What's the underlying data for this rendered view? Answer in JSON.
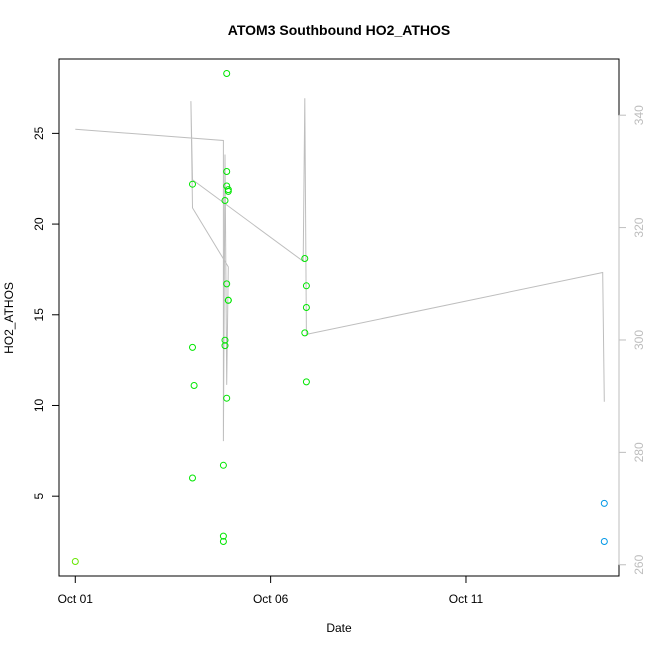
{
  "chart_data": {
    "type": "scatter",
    "title": "ATOM3 Southbound HO2_ATHOS",
    "xlabel": "Date",
    "ylabel": "HO2_ATHOS",
    "y2label": "",
    "x_ticks": [
      {
        "label": "Oct 01",
        "value": "2004-10-01T00:00"
      },
      {
        "label": "Oct 06",
        "value": "2004-10-06T00:00"
      },
      {
        "label": "Oct 11",
        "value": "2004-10-11T00:00"
      }
    ],
    "y_ticks": [
      5,
      10,
      15,
      20,
      25
    ],
    "y2_ticks": [
      260,
      280,
      300,
      320,
      340
    ],
    "ylim": [
      0.6,
      29.1
    ],
    "y2lim": [
      258,
      350
    ],
    "xlim": [
      "2004-09-30T14:00",
      "2004-10-14T22:00"
    ],
    "colors": {
      "green": "#00e600",
      "green_light": "#66e600",
      "cyan": "#0097e6",
      "line": "#bebebe"
    },
    "series": [
      {
        "color": "#66e600",
        "points": [
          [
            "2004-10-01T00:00",
            1.4
          ]
        ]
      },
      {
        "color": "#00e600",
        "points": [
          [
            "2004-10-04T00:00",
            22.2
          ],
          [
            "2004-10-04T00:00",
            13.2
          ],
          [
            "2004-10-04T01:00",
            11.1
          ],
          [
            "2004-10-04T00:00",
            6.0
          ],
          [
            "2004-10-04T19:00",
            6.7
          ],
          [
            "2004-10-04T19:00",
            2.5
          ],
          [
            "2004-10-04T19:00",
            2.8
          ],
          [
            "2004-10-04T20:00",
            13.6
          ],
          [
            "2004-10-04T20:00",
            13.3
          ],
          [
            "2004-10-04T21:00",
            10.4
          ],
          [
            "2004-10-04T21:00",
            16.7
          ],
          [
            "2004-10-04T22:00",
            15.8
          ],
          [
            "2004-10-04T22:00",
            15.8
          ],
          [
            "2004-10-04T21:00",
            22.9
          ],
          [
            "2004-10-04T21:00",
            22.1
          ],
          [
            "2004-10-04T22:00",
            21.8
          ],
          [
            "2004-10-04T22:00",
            21.9
          ],
          [
            "2004-10-04T20:00",
            21.3
          ],
          [
            "2004-10-04T21:00",
            28.3
          ],
          [
            "2004-10-06T21:00",
            18.1
          ],
          [
            "2004-10-06T22:00",
            16.6
          ],
          [
            "2004-10-06T22:00",
            15.4
          ],
          [
            "2004-10-06T21:00",
            14.0
          ],
          [
            "2004-10-06T22:00",
            11.3
          ]
        ]
      },
      {
        "color": "#0097e6",
        "points": [
          [
            "2004-10-14T13:00",
            4.6
          ],
          [
            "2004-10-14T13:00",
            2.5
          ]
        ]
      }
    ],
    "line_series": {
      "axis": "right",
      "color": "#bebebe",
      "points": [
        [
          "2004-10-01T00:00",
          337.5
        ],
        [
          "2004-10-04T19:00",
          335.5
        ],
        [
          "2004-10-04T19:00",
          282.0
        ],
        [
          "2004-10-04T20:00",
          333.0
        ],
        [
          "2004-10-04T21:00",
          292.0
        ],
        [
          "2004-10-04T22:00",
          313.0
        ],
        [
          "2004-10-04T00:00",
          323.5
        ],
        [
          "2004-10-03T23:00",
          342.5
        ],
        [
          "2004-10-04T00:00",
          328.5
        ],
        [
          "2004-10-06T20:00",
          314.0
        ],
        [
          "2004-10-06T21:00",
          343.0
        ],
        [
          "2004-10-06T22:00",
          301.0
        ],
        [
          "2004-10-14T12:00",
          312.0
        ],
        [
          "2004-10-14T13:00",
          289.0
        ]
      ]
    }
  }
}
